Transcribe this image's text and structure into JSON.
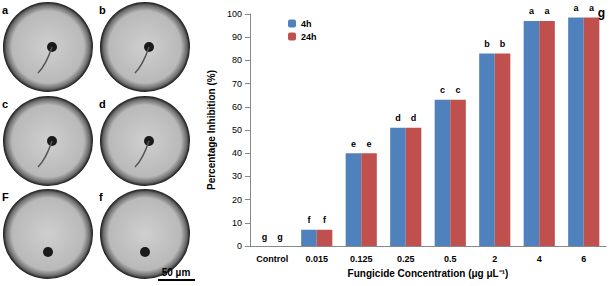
{
  "chart_data": {
    "type": "bar",
    "panel_label": "g",
    "x_label": "Fungicide Concentration (μg μL⁻¹)",
    "y_label": "Percentage Inhibition (%)",
    "categories": [
      "Control",
      "0.015",
      "0.125",
      "0.25",
      "0.5",
      "2",
      "4",
      "6"
    ],
    "series": [
      {
        "name": "4h",
        "color": "#4f81bd",
        "values": [
          0,
          7,
          40,
          51,
          63,
          83,
          97,
          98.5
        ],
        "letters": [
          "g",
          "f",
          "e",
          "d",
          "c",
          "b",
          "a",
          "a"
        ]
      },
      {
        "name": "24h",
        "color": "#c0504d",
        "values": [
          0,
          7,
          40,
          51,
          63,
          83,
          97,
          98.5
        ],
        "letters": [
          "g",
          "f",
          "e",
          "d",
          "c",
          "b",
          "a",
          "a"
        ]
      }
    ],
    "ylim": [
      0,
      100
    ],
    "yticks": [
      0,
      10,
      20,
      30,
      40,
      50,
      60,
      70,
      80,
      90,
      100
    ],
    "grid": false,
    "legend": "upper left"
  },
  "images": {
    "labels": [
      "a",
      "b",
      "c",
      "d",
      "F",
      "f"
    ],
    "scale_bar": "50 µm"
  }
}
